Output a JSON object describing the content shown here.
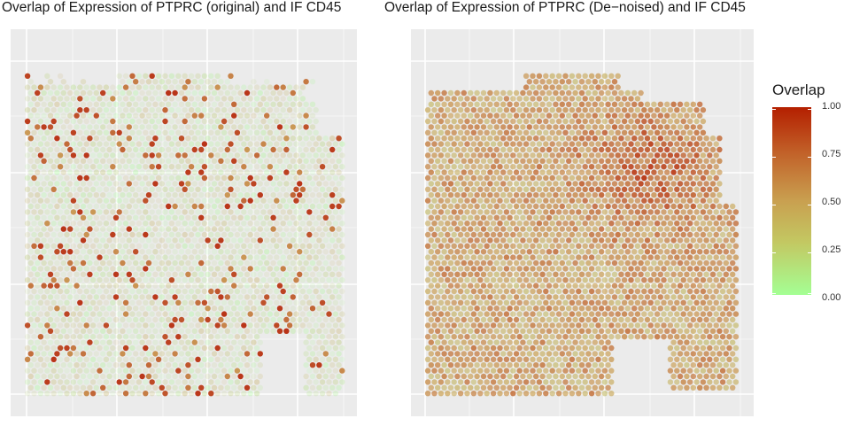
{
  "panels": [
    {
      "id": "original",
      "title": "Overlap of Expression of PTPRC (original) and IF CD45"
    },
    {
      "id": "denoised",
      "title": "Overlap of Expression of PTPRC (De−noised) and IF CD45"
    }
  ],
  "legend": {
    "title": "Overlap",
    "ticks": [
      "1.00",
      "0.75",
      "0.50",
      "0.25",
      "0.00"
    ],
    "color_high": "#b41f00",
    "color_mid": "#c9a050",
    "color_low": "#a4ff94"
  },
  "chart_data": [
    {
      "type": "scatter",
      "title": "Overlap of Expression of PTPRC (original) and IF CD45",
      "xlabel": "",
      "ylabel": "",
      "color_variable": "Overlap",
      "color_range": [
        0,
        1
      ],
      "grid": true,
      "axis_ticks_labeled": false,
      "description_of_values": "spatial spot map; mostly low overlap with scattered high-overlap spots"
    },
    {
      "type": "scatter",
      "title": "Overlap of Expression of PTPRC (De−noised) and IF CD45",
      "xlabel": "",
      "ylabel": "",
      "color_variable": "Overlap",
      "color_range": [
        0,
        1
      ],
      "grid": true,
      "axis_ticks_labeled": false,
      "description_of_values": "spatial spot map; moderately high overlap across tissue, highest in upper-right region"
    }
  ]
}
